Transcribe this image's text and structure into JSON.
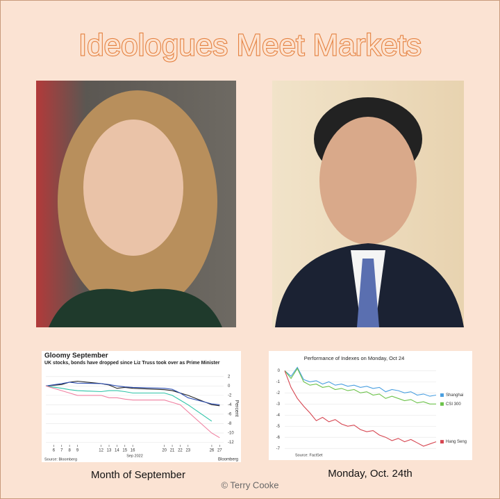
{
  "title": "Ideologues Meet Markets",
  "charts": [
    {
      "type": "line",
      "title": "Gloomy September",
      "subtitle": "UK stocks, bonds have dropped since Liz Truss took over as Prime Minister",
      "x": [
        5,
        7,
        8,
        9,
        12,
        13,
        14,
        15,
        16,
        20,
        21,
        22,
        23,
        26,
        27
      ],
      "xlim": [
        5,
        27.5
      ],
      "xticks": [
        6,
        7,
        8,
        9,
        12,
        13,
        14,
        15,
        16,
        20,
        21,
        22,
        23,
        26,
        27
      ],
      "x_label": "Sep 2022",
      "y_label": "Percent",
      "ylim": [
        -12.5,
        3
      ],
      "yticks": [
        2,
        0,
        -2,
        -4,
        -6,
        -8,
        -10,
        -12
      ],
      "series": [
        {
          "color": "#222222",
          "values": [
            0,
            0.3,
            0.8,
            1,
            0.5,
            0.2,
            -0.5,
            -0.3,
            -0.5,
            -0.8,
            -1,
            -1.5,
            -2,
            -4,
            -4.2
          ]
        },
        {
          "color": "#2d4fb3",
          "values": [
            0,
            0.5,
            0.8,
            0.6,
            0.5,
            0.3,
            0,
            -0.2,
            -0.3,
            -0.5,
            -0.7,
            -1.5,
            -2.5,
            -3.8,
            -4
          ]
        },
        {
          "color": "#2ec4a8",
          "values": [
            0,
            -0.5,
            -0.8,
            -1,
            -1.2,
            -1,
            -1,
            -1.2,
            -1.5,
            -1.5,
            -2,
            -3,
            -4,
            -7.5,
            null
          ]
        },
        {
          "color": "#f07fa0",
          "values": [
            0,
            -1,
            -1.5,
            -2,
            -2,
            -2.5,
            -2.5,
            -2.8,
            -3,
            -3,
            -3.5,
            -4,
            -5.5,
            -10,
            -11
          ]
        }
      ],
      "source": "Source: Bloomberg",
      "brand": "Bloomberg"
    },
    {
      "type": "line",
      "title": "Performance of Indexes on Monday, Oct 24",
      "ylim": [
        -7.3,
        0.4
      ],
      "yticks": [
        0,
        -1,
        -2,
        -3,
        -4,
        -5,
        -6,
        -7
      ],
      "series": [
        {
          "name": "Shanghai",
          "color": "#4a9fe0",
          "values": [
            0,
            -0.5,
            0.3,
            -0.8,
            -1,
            -0.9,
            -1.2,
            -1,
            -1.3,
            -1.2,
            -1.4,
            -1.3,
            -1.5,
            -1.4,
            -1.6,
            -1.5,
            -1.9,
            -1.7,
            -1.8,
            -2,
            -1.9,
            -2.2,
            -2.1,
            -2.3,
            -2.2
          ]
        },
        {
          "name": "CSI 300",
          "color": "#6cc24a",
          "values": [
            0,
            -0.7,
            0.2,
            -1,
            -1.3,
            -1.2,
            -1.5,
            -1.4,
            -1.7,
            -1.6,
            -1.8,
            -1.7,
            -2,
            -1.9,
            -2.2,
            -2.1,
            -2.5,
            -2.3,
            -2.5,
            -2.7,
            -2.6,
            -2.9,
            -2.8,
            -3,
            -3
          ]
        },
        {
          "name": "Hang Seng",
          "color": "#d64550",
          "values": [
            0,
            -1.5,
            -2.5,
            -3.2,
            -3.8,
            -4.5,
            -4.2,
            -4.6,
            -4.4,
            -4.8,
            -5,
            -4.9,
            -5.3,
            -5.5,
            -5.4,
            -5.8,
            -6,
            -6.3,
            -6.1,
            -6.4,
            -6.2,
            -6.5,
            -6.8,
            -6.6,
            -6.4
          ]
        }
      ],
      "source": "Source: FactSet"
    }
  ],
  "captions": [
    "Month of September",
    "Monday, Oct. 24th"
  ],
  "credit": "© Terry Cooke"
}
